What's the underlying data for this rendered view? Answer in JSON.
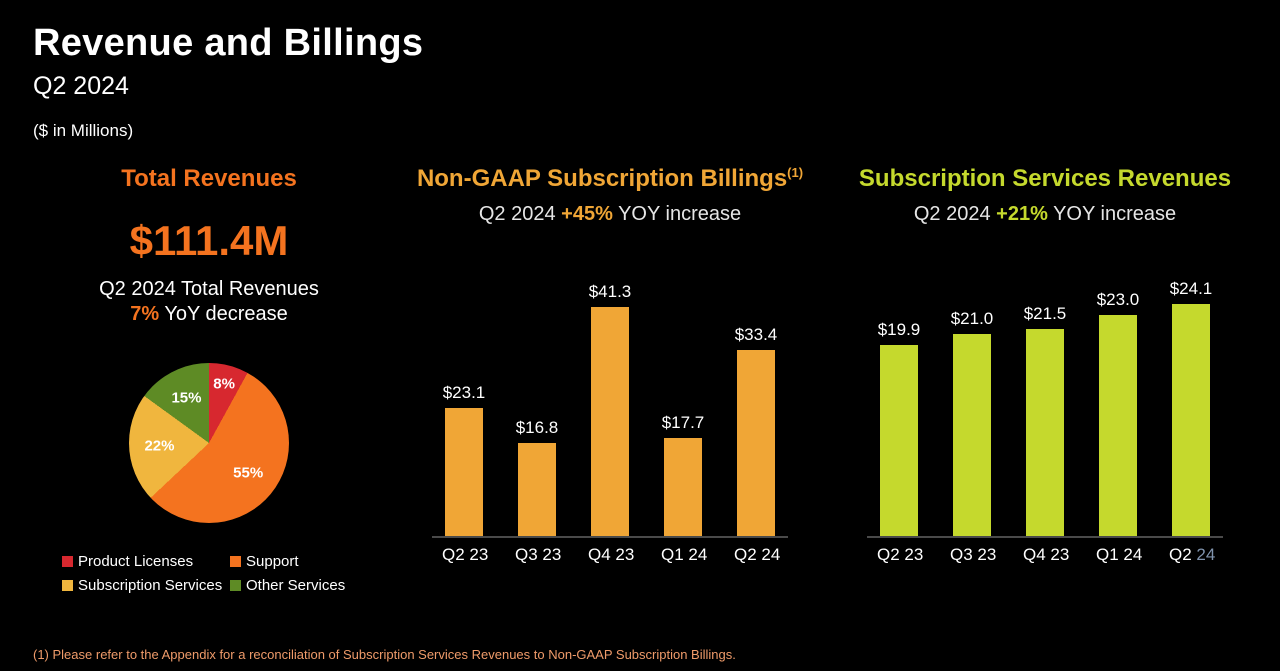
{
  "header": {
    "title": "Revenue and Billings",
    "subtitle": "Q2 2024",
    "units": "($ in Millions)"
  },
  "panels": {
    "total": {
      "heading": "Total Revenues",
      "value": "$111.4M",
      "caption": "Q2 2024 Total Revenues",
      "yoy_pct": "7%",
      "yoy_text": " YoY decrease"
    },
    "billings": {
      "heading": "Non-GAAP Subscription Billings",
      "footnote_ref": "(1)",
      "sub_prefix": "Q2 2024 ",
      "sub_pct": "+45%",
      "sub_suffix": " YOY increase"
    },
    "subscription": {
      "heading": "Subscription Services Revenues",
      "sub_prefix": "Q2 2024 ",
      "sub_pct": "+21%",
      "sub_suffix": " YOY increase"
    }
  },
  "colors": {
    "background": "#000000",
    "orange": "#f4731f",
    "amber": "#f0a636",
    "lime": "#c5d92d",
    "red": "#d7282f",
    "gold": "#f0b63e",
    "olive": "#5e8b25",
    "subtext": "#e6e6e6",
    "axis": "#4a4a4a",
    "footnote": "#ef9b6a"
  },
  "footnote": "(1) Please refer to the Appendix for a reconciliation of Subscription Services Revenues to Non-GAAP Subscription Billings.",
  "chart_data": [
    {
      "id": "pie-total",
      "type": "pie",
      "title": "Total Revenues mix (Q2 2024)",
      "labels": [
        "Product Licenses",
        "Support",
        "Subscription Services",
        "Other Services"
      ],
      "values": [
        8,
        55,
        22,
        15
      ],
      "value_labels": [
        "8%",
        "55%",
        "22%",
        "15%"
      ],
      "colors": [
        "#d7282f",
        "#f4731f",
        "#f0b63e",
        "#5e8b25"
      ],
      "legend_position": "bottom"
    },
    {
      "id": "chart-billings",
      "type": "bar",
      "title": "Non-GAAP Subscription Billings",
      "categories": [
        "Q2 23",
        "Q3 23",
        "Q4 23",
        "Q1 24",
        "Q2 24"
      ],
      "values": [
        23.1,
        16.8,
        41.3,
        17.7,
        33.4
      ],
      "data_labels": [
        "$23.1",
        "$16.8",
        "$41.3",
        "$17.7",
        "$33.4"
      ],
      "bar_color": "#f0a636",
      "ylim": [
        0,
        45
      ],
      "grid": false
    },
    {
      "id": "chart-subscription",
      "type": "bar",
      "title": "Subscription Services Revenues",
      "categories": [
        "Q2 23",
        "Q3 23",
        "Q4 23",
        "Q1 24",
        "Q2 24"
      ],
      "values": [
        19.9,
        21.0,
        21.5,
        23.0,
        24.1
      ],
      "data_labels": [
        "$19.9",
        "$21.0",
        "$21.5",
        "$23.0",
        "$24.1"
      ],
      "bar_color": "#c5d92d",
      "ylim": [
        0,
        26
      ],
      "grid": false,
      "last_category_accent": {
        "prefix": "Q2 ",
        "text": "24",
        "color": "#8093ad"
      }
    }
  ]
}
